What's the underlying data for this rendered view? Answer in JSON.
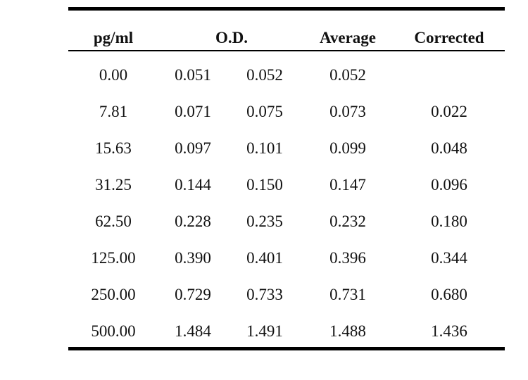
{
  "table": {
    "headers": {
      "concentration": "pg/ml",
      "od": "O.D.",
      "average": "Average",
      "corrected": "Corrected"
    },
    "rows": [
      {
        "concentration": "0.00",
        "od1": "0.051",
        "od2": "0.052",
        "average": "0.052",
        "corrected": ""
      },
      {
        "concentration": "7.81",
        "od1": "0.071",
        "od2": "0.075",
        "average": "0.073",
        "corrected": "0.022"
      },
      {
        "concentration": "15.63",
        "od1": "0.097",
        "od2": "0.101",
        "average": "0.099",
        "corrected": "0.048"
      },
      {
        "concentration": "31.25",
        "od1": "0.144",
        "od2": "0.150",
        "average": "0.147",
        "corrected": "0.096"
      },
      {
        "concentration": "62.50",
        "od1": "0.228",
        "od2": "0.235",
        "average": "0.232",
        "corrected": "0.180"
      },
      {
        "concentration": "125.00",
        "od1": "0.390",
        "od2": "0.401",
        "average": "0.396",
        "corrected": "0.344"
      },
      {
        "concentration": "250.00",
        "od1": "0.729",
        "od2": "0.733",
        "average": "0.731",
        "corrected": "0.680"
      },
      {
        "concentration": "500.00",
        "od1": "1.484",
        "od2": "1.491",
        "average": "1.488",
        "corrected": "1.436"
      }
    ]
  }
}
